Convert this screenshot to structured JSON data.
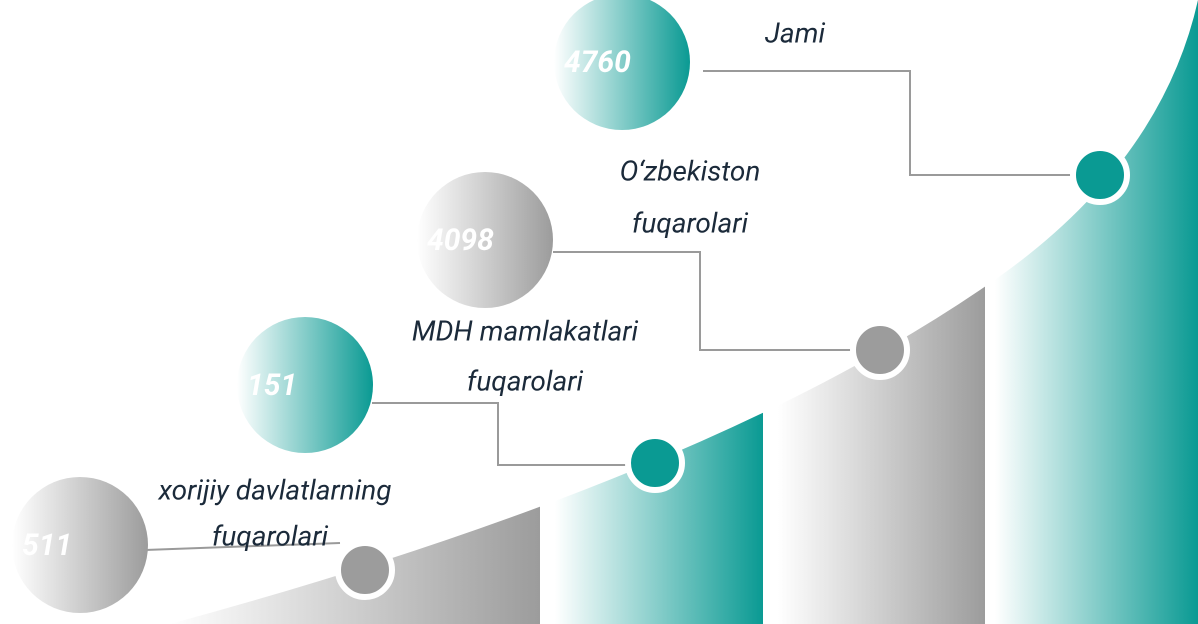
{
  "items": [
    {
      "value": "511",
      "label": [
        "xorijiy davlatlarning",
        "fuqarolari"
      ]
    },
    {
      "value": "151",
      "label": [
        "MDH mamlakatlari",
        "fuqarolari"
      ]
    },
    {
      "value": "4098",
      "label": [
        "O‘zbekiston",
        "fuqarolari"
      ]
    },
    {
      "value": "4760",
      "label": [
        "Jami"
      ]
    }
  ]
}
